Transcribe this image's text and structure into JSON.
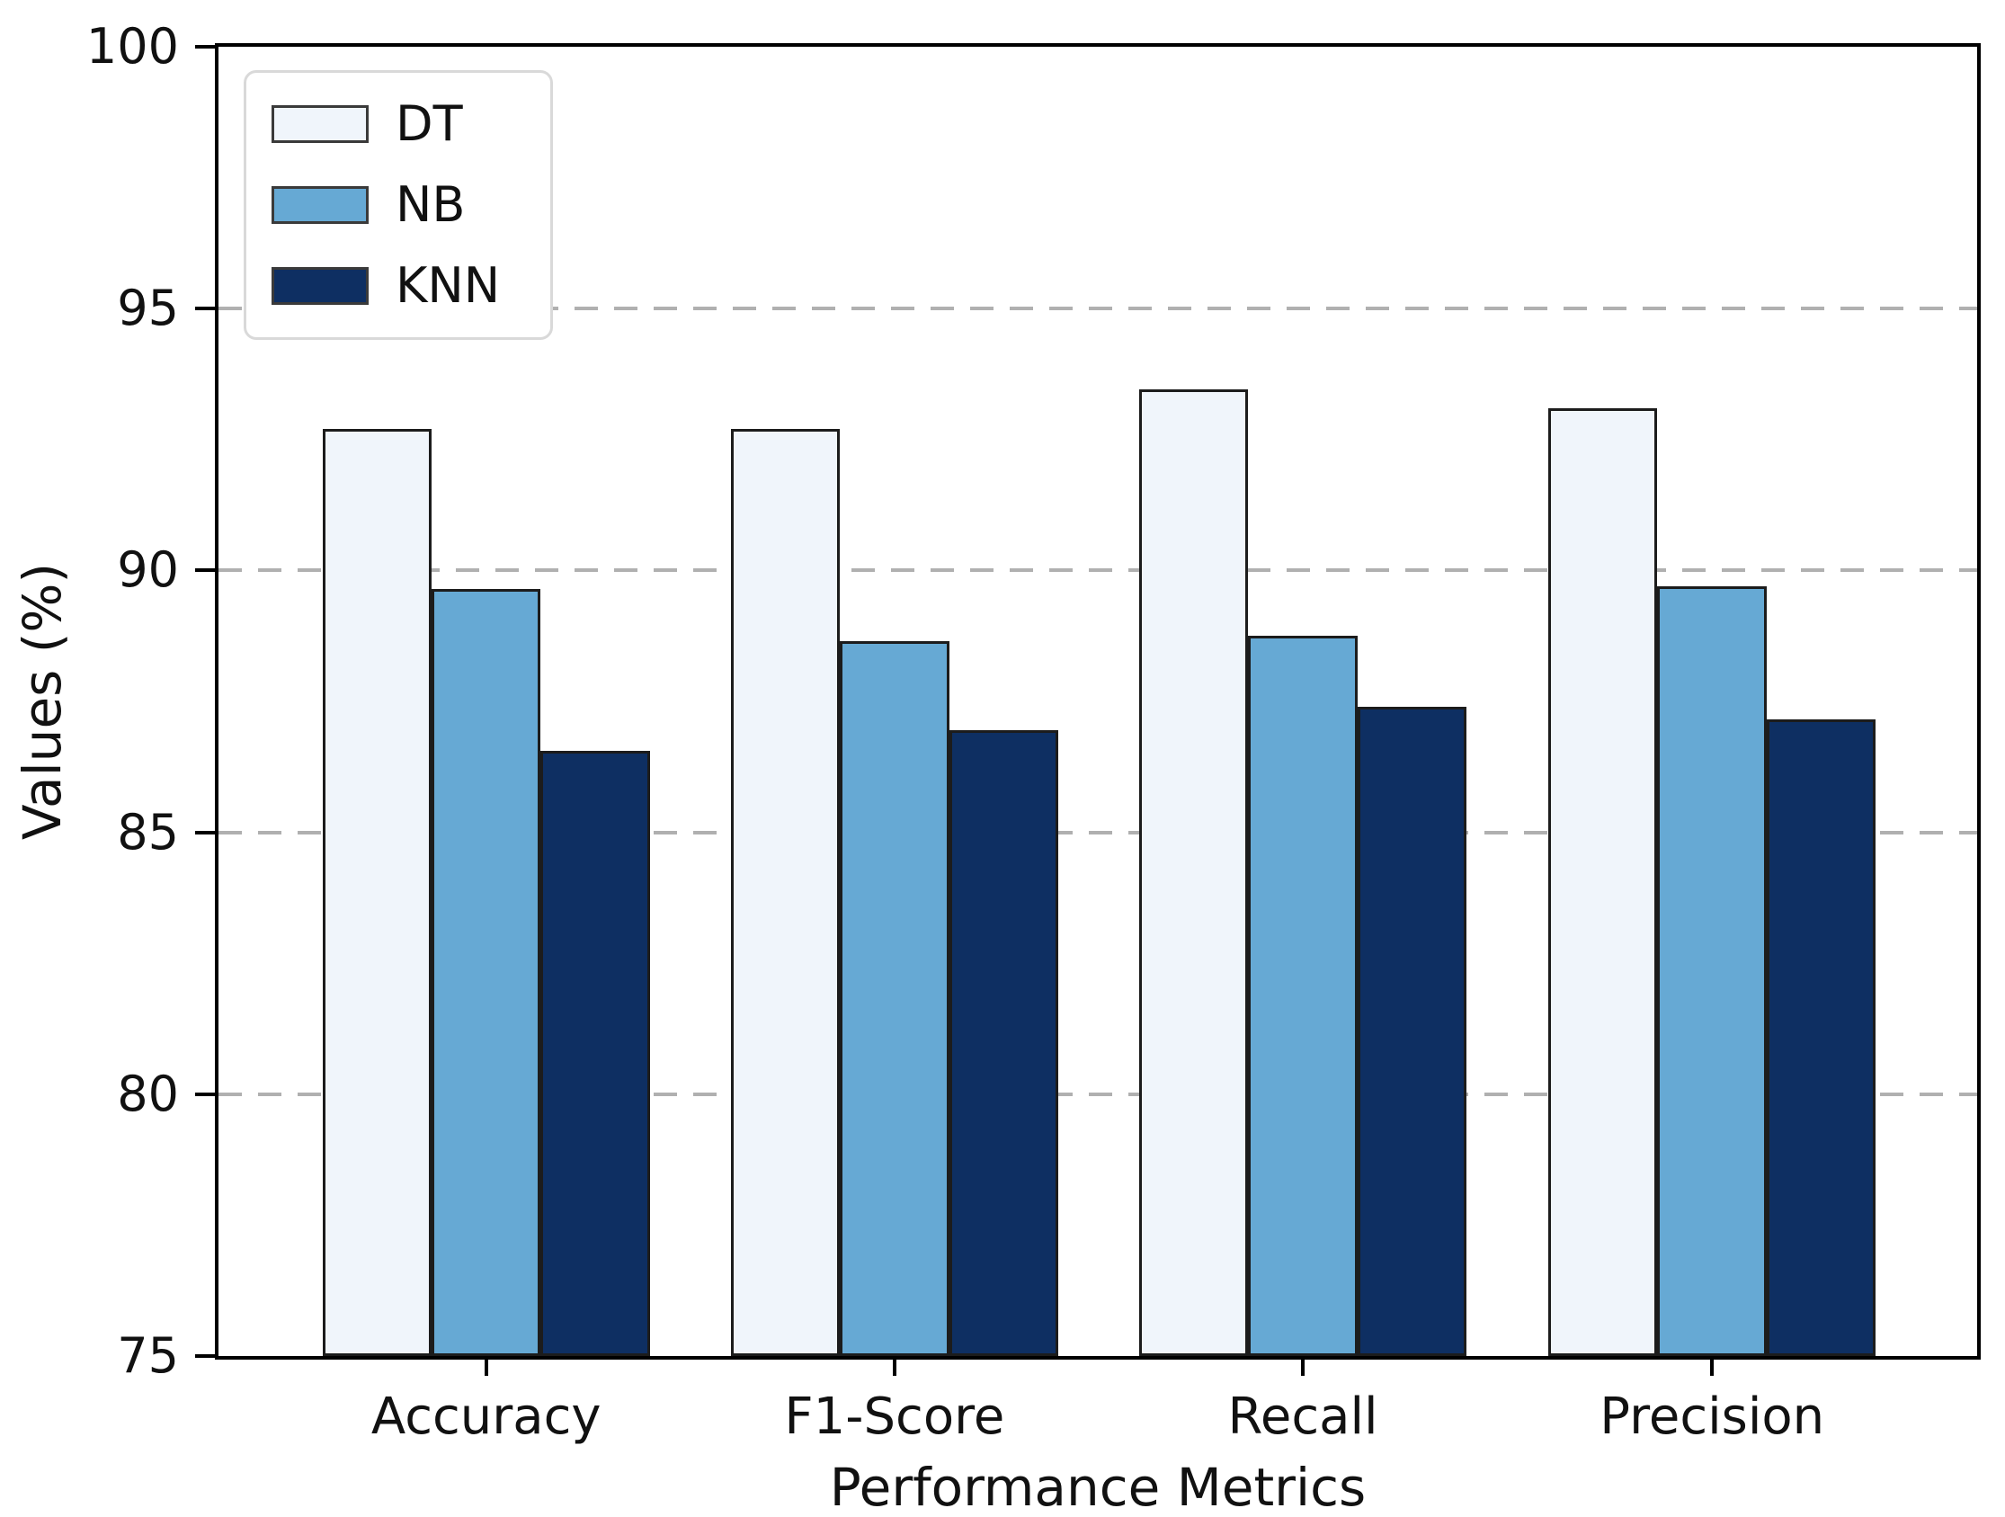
{
  "chart_data": {
    "type": "bar",
    "title": "",
    "xlabel": "Performance Metrics",
    "ylabel": "Values (%)",
    "categories": [
      "Accuracy",
      "F1-Score",
      "Recall",
      "Precision"
    ],
    "series": [
      {
        "name": "DT",
        "color": "#f0f5fb",
        "values": [
          92.7,
          92.7,
          93.45,
          93.1
        ]
      },
      {
        "name": "NB",
        "color": "#66a9d4",
        "values": [
          89.65,
          88.65,
          88.75,
          89.7
        ]
      },
      {
        "name": "KNN",
        "color": "#0e2f62",
        "values": [
          86.55,
          86.95,
          87.4,
          87.15
        ]
      }
    ],
    "bar_edge_color": "#1c1c1c",
    "ylim": [
      75,
      100
    ],
    "yticks": [
      75,
      80,
      85,
      90,
      95,
      100
    ],
    "grid": {
      "axis": "y",
      "style": "dashed",
      "color": "#b0b0b0",
      "values": [
        80,
        85,
        90,
        95
      ]
    },
    "legend": {
      "position": "upper left"
    }
  }
}
